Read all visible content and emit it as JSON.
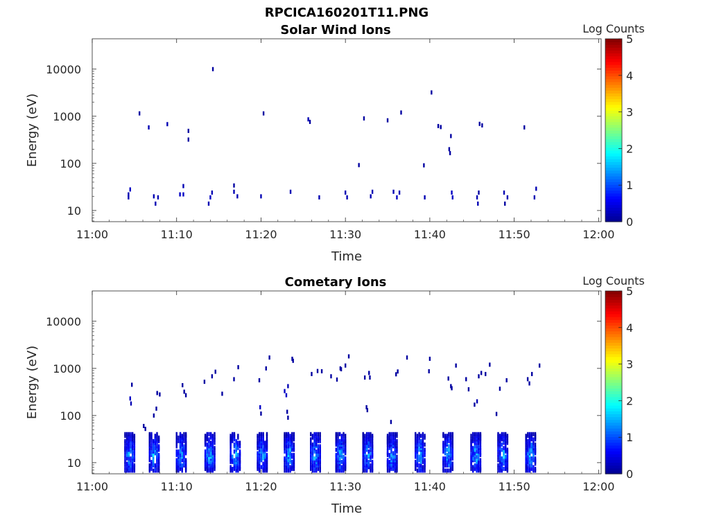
{
  "figure": {
    "title": "RPCICA160201T11.PNG",
    "colorbar_label": "Log Counts",
    "colorbar_ticks": [
      "0",
      "1",
      "2",
      "3",
      "4",
      "5"
    ],
    "colormap": [
      "#00008f",
      "#0000ff",
      "#0080ff",
      "#00ffff",
      "#80ff80",
      "#ffff00",
      "#ff8000",
      "#ff0000",
      "#800000"
    ]
  },
  "chart_data": [
    {
      "type": "heatmap",
      "title": "Solar Wind Ions",
      "xlabel": "Time",
      "ylabel": "Energy (eV)",
      "x_ticks": [
        "11:00",
        "11:10",
        "11:20",
        "11:30",
        "11:40",
        "11:50",
        "12:00"
      ],
      "x_range_minutes": [
        0,
        60.3
      ],
      "y_scale": "log",
      "y_ticks": [
        "10",
        "100",
        "1000",
        "10000"
      ],
      "y_range": [
        5.8,
        44000
      ],
      "color_range": [
        0,
        5
      ],
      "points": [
        [
          4.3,
          22,
          0.2
        ],
        [
          4.3,
          19,
          0.2
        ],
        [
          4.5,
          28,
          0.3
        ],
        [
          5.6,
          1150,
          0.1
        ],
        [
          6.7,
          580,
          0.2
        ],
        [
          7.3,
          20,
          0.2
        ],
        [
          7.5,
          14,
          0.2
        ],
        [
          7.8,
          19,
          0.2
        ],
        [
          8.9,
          680,
          0.2
        ],
        [
          10.4,
          22,
          0.3
        ],
        [
          10.8,
          22,
          0.3
        ],
        [
          10.8,
          33,
          0.2
        ],
        [
          11.4,
          490,
          0.1
        ],
        [
          11.4,
          320,
          0.1
        ],
        [
          13.8,
          14,
          0.2
        ],
        [
          14.0,
          19,
          0.3
        ],
        [
          14.2,
          24,
          0.2
        ],
        [
          14.3,
          10000,
          0.1
        ],
        [
          16.8,
          25,
          0.2
        ],
        [
          16.8,
          34,
          0.1
        ],
        [
          17.2,
          20,
          0.2
        ],
        [
          20.0,
          20,
          0.2
        ],
        [
          20.3,
          1150,
          0.1
        ],
        [
          23.5,
          25,
          0.2
        ],
        [
          25.6,
          860,
          0.2
        ],
        [
          25.8,
          760,
          0.1
        ],
        [
          26.9,
          19,
          0.2
        ],
        [
          30.0,
          24,
          0.2
        ],
        [
          30.2,
          19,
          0.2
        ],
        [
          31.6,
          92,
          0.1
        ],
        [
          32.2,
          900,
          0.1
        ],
        [
          33.0,
          20,
          0.2
        ],
        [
          33.2,
          25,
          0.2
        ],
        [
          35.0,
          820,
          0.1
        ],
        [
          35.7,
          25,
          0.2
        ],
        [
          36.1,
          19,
          0.3
        ],
        [
          36.4,
          24,
          0.2
        ],
        [
          36.6,
          1200,
          0.1
        ],
        [
          39.3,
          91,
          0.1
        ],
        [
          39.4,
          19,
          0.2
        ],
        [
          40.2,
          3200,
          0.1
        ],
        [
          41.0,
          620,
          0.1
        ],
        [
          41.3,
          590,
          0.1
        ],
        [
          42.3,
          200,
          0.1
        ],
        [
          42.4,
          165,
          0.1
        ],
        [
          42.5,
          380,
          0.1
        ],
        [
          42.6,
          24,
          0.3
        ],
        [
          42.7,
          19,
          0.3
        ],
        [
          45.6,
          19,
          0.2
        ],
        [
          45.7,
          14,
          0.2
        ],
        [
          45.8,
          24,
          0.1
        ],
        [
          45.9,
          690,
          0.1
        ],
        [
          46.2,
          640,
          0.1
        ],
        [
          48.8,
          24,
          0.2
        ],
        [
          48.9,
          14,
          0.1
        ],
        [
          49.2,
          19,
          0.2
        ],
        [
          51.2,
          580,
          0.1
        ],
        [
          52.4,
          19,
          0.2
        ],
        [
          52.6,
          29,
          0.2
        ]
      ]
    },
    {
      "type": "heatmap",
      "title": "Cometary Ions",
      "xlabel": "Time",
      "ylabel": "Energy (eV)",
      "x_ticks": [
        "11:00",
        "11:10",
        "11:20",
        "11:30",
        "11:40",
        "11:50",
        "12:00"
      ],
      "x_range_minutes": [
        0,
        60.3
      ],
      "y_scale": "log",
      "y_ticks": [
        "10",
        "100",
        "1000",
        "10000"
      ],
      "y_range": [
        5.8,
        44000
      ],
      "color_range": [
        0,
        5
      ],
      "bursts": [
        4.3,
        7.2,
        10.4,
        13.8,
        16.8,
        20.0,
        23.2,
        26.3,
        29.3,
        32.5,
        35.4,
        38.7,
        42.0,
        45.3,
        48.5,
        51.8
      ],
      "burst_energy_range": [
        6.5,
        42
      ],
      "burst_peak_level": 1.8,
      "points": [
        [
          4.5,
          230,
          0.3
        ],
        [
          4.6,
          180,
          0.2
        ],
        [
          4.7,
          450,
          0.1
        ],
        [
          6.1,
          60,
          0.1
        ],
        [
          6.3,
          52,
          0.1
        ],
        [
          7.3,
          100,
          0.1
        ],
        [
          7.6,
          140,
          0.1
        ],
        [
          7.7,
          300,
          0.1
        ],
        [
          8.0,
          280,
          0.1
        ],
        [
          10.7,
          440,
          0.1
        ],
        [
          10.9,
          320,
          0.1
        ],
        [
          11.1,
          270,
          0.1
        ],
        [
          13.3,
          520,
          0.1
        ],
        [
          14.2,
          680,
          0.1
        ],
        [
          14.6,
          850,
          0.1
        ],
        [
          15.4,
          290,
          0.1
        ],
        [
          16.8,
          590,
          0.1
        ],
        [
          17.3,
          1060,
          0.1
        ],
        [
          19.8,
          560,
          0.1
        ],
        [
          19.9,
          150,
          0.3
        ],
        [
          20.0,
          110,
          0.1
        ],
        [
          20.6,
          1000,
          0.1
        ],
        [
          21.0,
          1700,
          0.1
        ],
        [
          22.8,
          330,
          0.3
        ],
        [
          23.0,
          270,
          0.3
        ],
        [
          23.2,
          420,
          0.2
        ],
        [
          23.1,
          120,
          0.1
        ],
        [
          23.2,
          90,
          0.1
        ],
        [
          23.7,
          1600,
          0.1
        ],
        [
          23.8,
          1450,
          0.1
        ],
        [
          26.0,
          760,
          0.1
        ],
        [
          26.7,
          880,
          0.1
        ],
        [
          27.2,
          870,
          0.1
        ],
        [
          28.3,
          680,
          0.1
        ],
        [
          29.0,
          580,
          0.1
        ],
        [
          29.4,
          1000,
          0.1
        ],
        [
          29.5,
          960,
          0.1
        ],
        [
          30.0,
          1150,
          0.1
        ],
        [
          30.4,
          1800,
          0.1
        ],
        [
          32.3,
          640,
          0.1
        ],
        [
          32.5,
          150,
          0.1
        ],
        [
          32.6,
          130,
          0.1
        ],
        [
          32.8,
          800,
          0.1
        ],
        [
          32.9,
          640,
          0.1
        ],
        [
          35.4,
          73,
          0.1
        ],
        [
          36.0,
          750,
          0.1
        ],
        [
          36.2,
          860,
          0.1
        ],
        [
          37.3,
          1700,
          0.1
        ],
        [
          39.9,
          870,
          0.1
        ],
        [
          40.0,
          1600,
          0.1
        ],
        [
          42.2,
          610,
          0.1
        ],
        [
          42.5,
          420,
          0.1
        ],
        [
          42.6,
          380,
          0.1
        ],
        [
          43.1,
          1150,
          0.1
        ],
        [
          44.3,
          590,
          0.1
        ],
        [
          44.6,
          360,
          0.1
        ],
        [
          45.3,
          170,
          0.1
        ],
        [
          45.6,
          200,
          0.2
        ],
        [
          45.8,
          680,
          0.1
        ],
        [
          46.1,
          800,
          0.1
        ],
        [
          46.6,
          760,
          0.1
        ],
        [
          47.1,
          1200,
          0.1
        ],
        [
          47.9,
          108,
          0.1
        ],
        [
          48.3,
          370,
          0.1
        ],
        [
          49.1,
          560,
          0.1
        ],
        [
          51.6,
          590,
          0.1
        ],
        [
          51.8,
          480,
          0.1
        ],
        [
          52.1,
          760,
          0.1
        ],
        [
          53.0,
          1150,
          0.1
        ]
      ]
    }
  ]
}
